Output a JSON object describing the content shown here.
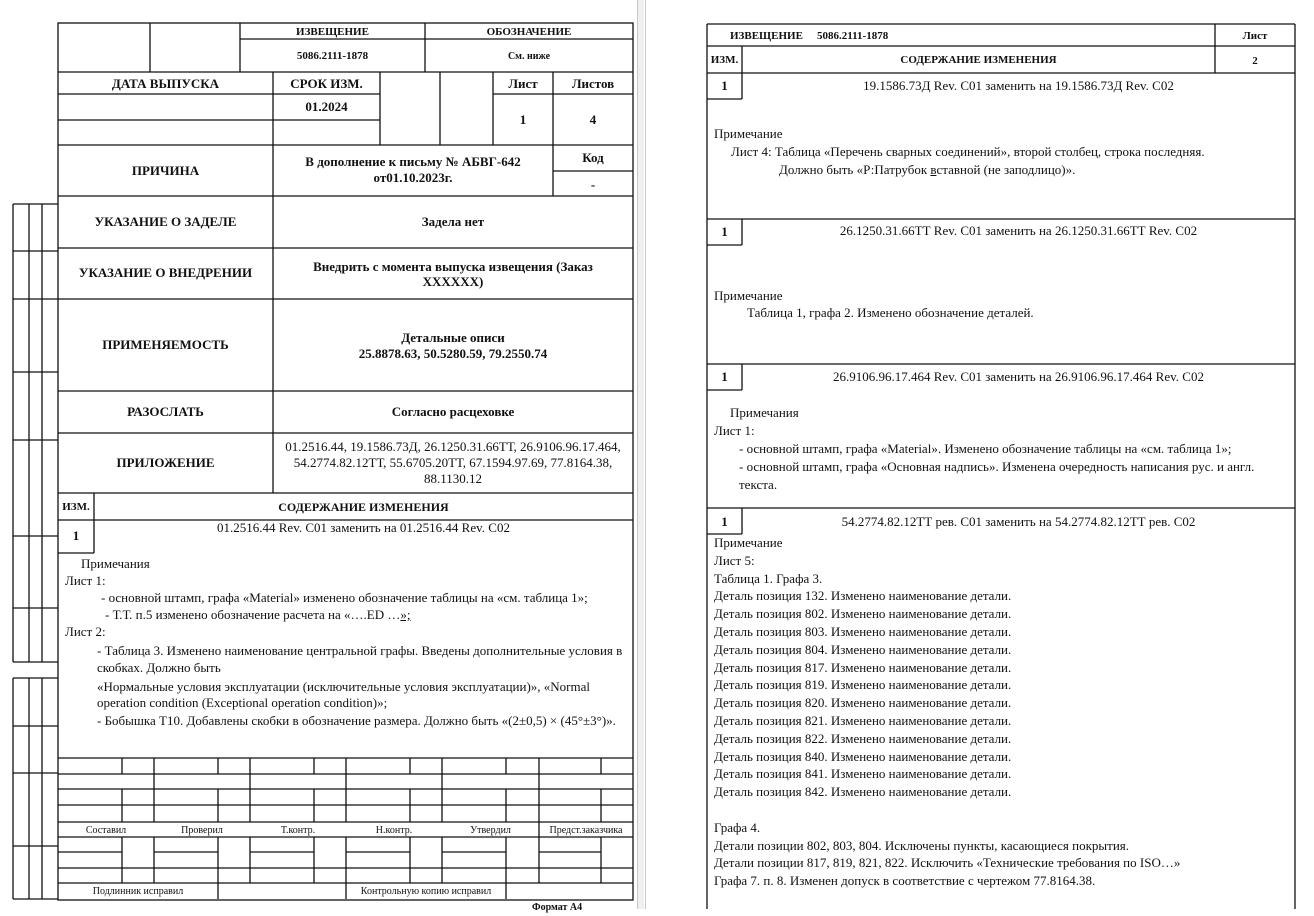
{
  "left_page": {
    "header": {
      "notice_label": "ИЗВЕЩЕНИЕ",
      "notice_number": "5086.2111-1878",
      "designation_label": "ОБОЗНАЧЕНИЕ",
      "designation_value": "См. ниже",
      "release_date_label": "ДАТА ВЫПУСКА",
      "change_term_label": "СРОК ИЗМ.",
      "change_term_value": "01.2024",
      "sheet_label": "Лист",
      "sheet_value": "1",
      "sheets_label": "Листов",
      "sheets_value": "4"
    },
    "rows": {
      "reason_label": "ПРИЧИНА",
      "reason_line1": "В дополнение к письму № АБВГ-642",
      "reason_line2": "от01.10.2023г.",
      "code_label": "Код",
      "code_value": "-",
      "backlog_label": "УКАЗАНИЕ О ЗАДЕЛЕ",
      "backlog_value": "Задела нет",
      "implementation_label": "УКАЗАНИЕ О ВНЕДРЕНИИ",
      "implementation_line1": "Внедрить с момента выпуска извещения (Заказ",
      "implementation_line2": "XXXXXX)",
      "applicability_label": "ПРИМЕНЯЕМОСТЬ",
      "applicability_line1": "Детальные описи",
      "applicability_line2": "25.8878.63, 50.5280.59, 79.2550.74",
      "distribute_label": "РАЗОСЛАТЬ",
      "distribute_value": "Согласно расцеховке",
      "attachment_label": "ПРИЛОЖЕНИЕ",
      "attachment_line1": "01.2516.44, 19.1586.73Д, 26.1250.31.66ТТ, 26.9106.96.17.464,",
      "attachment_line2": "54.2774.82.12ТТ, 55.6705.20ТТ, 67.1594.97.69, 77.8164.38,",
      "attachment_line3": "88.1130.12"
    },
    "content": {
      "change_col_label": "ИЗМ.",
      "content_col_label": "СОДЕРЖАНИЕ ИЗМЕНЕНИЯ",
      "change_number": "1",
      "title": "01.2516.44 Rev. C01 заменить на 01.2516.44 Rev. C02",
      "lines": [
        "Примечания",
        "Лист 1:",
        "- основной штамп, графа «Material» изменено обозначение таблицы на «см. таблица 1»;",
        "- Т.Т. п.5 изменено обозначение расчета на «….ED …",
        "»;",
        "Лист 2:",
        "- Таблица 3. Изменено наименование центральной графы. Введены дополнительные условия в",
        "скобках. Должно быть",
        "«Нормальные условия эксплуатации (исключительные условия эксплуатации)», «Normal",
        "operation condition (Exceptional operation condition)»;",
        "- Бобышка Т10. Добавлены скобки в обозначение размера. Должно быть «(2±0,5) × (45°±3°)»."
      ]
    },
    "signatures": {
      "compiled": "Составил",
      "checked": "Проверил",
      "tech_control": "Т.контр.",
      "norm_control": "Н.контр.",
      "approved": "Утвердил",
      "customer_rep": "Предст.заказчика",
      "original_corrected": "Подлинник исправил",
      "control_copy_corrected": "Контрольную копию исправил"
    },
    "format_label": "Формат А4"
  },
  "right_page": {
    "header": {
      "notice_label": "ИЗВЕЩЕНИЕ",
      "notice_number": "5086.2111-1878",
      "sheet_label": "Лист",
      "change_col_label": "ИЗМ.",
      "content_col_label": "СОДЕРЖАНИЕ ИЗМЕНЕНИЯ",
      "sheet_value": "2"
    },
    "blocks": [
      {
        "number": "1",
        "title": "19.1586.73Д Rev. C01 заменить на 19.1586.73Д Rev. C02",
        "lines": [
          "Примечание",
          "Лист 4: Таблица «Перечень сварных соединений», второй столбец, строка последняя.",
          "Должно быть «Р:Патрубок ",
          "в",
          "ставной (не заподлицо)»."
        ]
      },
      {
        "number": "1",
        "title": "26.1250.31.66ТТ Rev. C01 заменить на 26.1250.31.66ТТ Rev. C02",
        "lines": [
          "Примечание",
          "Таблица 1, графа 2. Изменено обозначение деталей."
        ]
      },
      {
        "number": "1",
        "title": "26.9106.96.17.464 Rev. C01 заменить на 26.9106.96.17.464 Rev. C02",
        "lines": [
          "Примечания",
          "Лист 1:",
          "- основной штамп, графа «Material». Изменено обозначение таблицы на «см. таблица 1»;",
          "- основной штамп, графа «Основная надпись». Изменена очередность написания рус. и англ.",
          "текста."
        ]
      },
      {
        "number": "1",
        "title": "54.2774.82.12ТТ рев. C01 заменить на 54.2774.82.12ТТ рев. C02",
        "lines": [
          "Примечание",
          "Лист 5:",
          "Таблица 1. Графа 3.",
          "Деталь позиция 132. Изменено наименование детали.",
          "Деталь позиция 802. Изменено наименование детали.",
          "Деталь позиция 803. Изменено наименование детали.",
          "Деталь позиция 804. Изменено наименование детали.",
          "Деталь позиция 817. Изменено наименование детали.",
          "Деталь позиция 819. Изменено наименование детали.",
          "Деталь позиция 820. Изменено наименование детали.",
          "Деталь позиция 821. Изменено наименование детали.",
          "Деталь позиция 822. Изменено наименование детали.",
          "Деталь позиция 840. Изменено наименование детали.",
          "Деталь позиция 841. Изменено наименование детали.",
          "Деталь позиция 842. Изменено наименование детали.",
          "Графа 4.",
          "Детали позиции 802, 803, 804. Исключены пункты, касающиеся покрытия.",
          "Детали позиции 817, 819, 821, 822. Исключить «Технические требования по ISO…»",
          "Графа 7. п. 8. Изменен допуск в соответствие с чертежом 77.8164.38."
        ]
      }
    ]
  }
}
